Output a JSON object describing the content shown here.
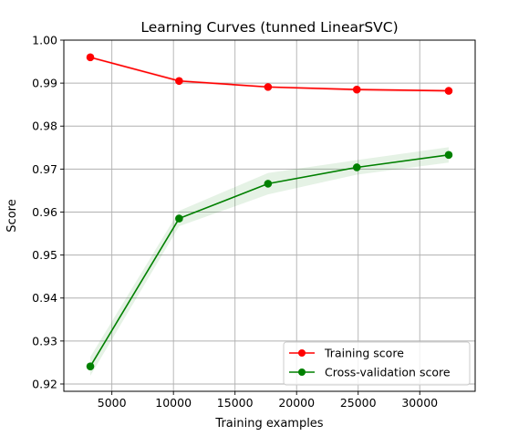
{
  "chart_data": {
    "type": "line",
    "title": "Learning Curves (tunned LinearSVC)",
    "xlabel": "Training examples",
    "ylabel": "Score",
    "xlim": [
      1100,
      34500
    ],
    "ylim": [
      0.9183,
      1.0
    ],
    "xticks": [
      5000,
      10000,
      15000,
      20000,
      25000,
      30000
    ],
    "yticks": [
      0.92,
      0.93,
      0.94,
      0.95,
      0.96,
      0.97,
      0.98,
      0.99,
      1.0
    ],
    "ytick_labels": [
      "0.92",
      "0.93",
      "0.94",
      "0.95",
      "0.96",
      "0.97",
      "0.98",
      "0.99",
      "1.00"
    ],
    "grid": true,
    "legend_position": "lower-right",
    "x": [
      3250,
      10460,
      17680,
      24890,
      32350
    ],
    "series": [
      {
        "name": "Training score",
        "color": "#ff0000",
        "band_color": "#ff0000",
        "values": [
          0.996,
          0.9905,
          0.9891,
          0.9885,
          0.9882
        ],
        "std": [
          0.0003,
          0.0004,
          0.0003,
          0.0004,
          0.0004
        ]
      },
      {
        "name": "Cross-validation score",
        "color": "#008000",
        "band_color": "#008000",
        "values": [
          0.9241,
          0.9585,
          0.9666,
          0.9704,
          0.9733
        ],
        "std": [
          0.0022,
          0.0018,
          0.0025,
          0.0017,
          0.0018
        ]
      }
    ]
  }
}
